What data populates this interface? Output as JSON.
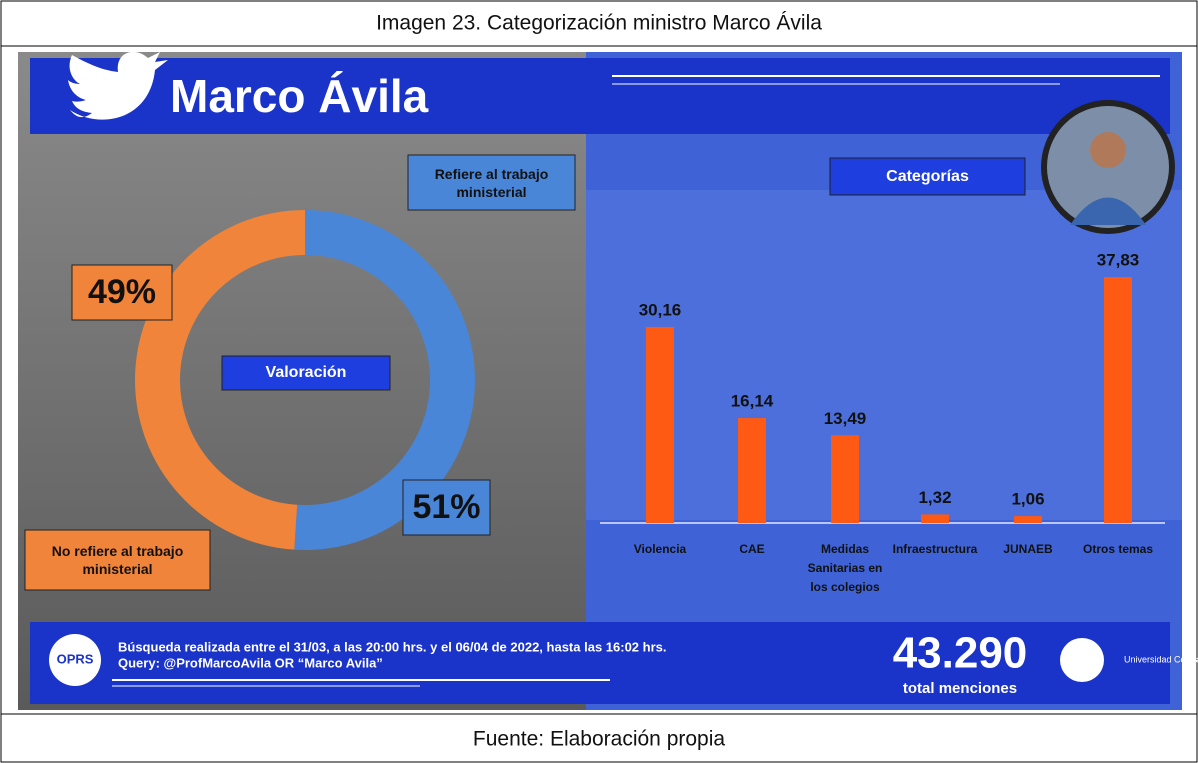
{
  "caption": "Imagen 23. Categorización ministro Marco Ávila",
  "source": "Fuente: Elaboración propia",
  "header": {
    "name": "Marco Ávila"
  },
  "chart_data": [
    {
      "type": "donut",
      "center_label": "Valoración",
      "labels": [
        "Refiere al trabajo ministerial",
        "No refiere al trabajo ministerial"
      ],
      "values": [
        51,
        49
      ],
      "value_labels": [
        "51%",
        "49%"
      ],
      "colors": [
        "#4a86d8",
        "#f0843a"
      ]
    },
    {
      "type": "bar",
      "title": "Categorías",
      "categories": [
        "Violencia",
        "CAE",
        "Medidas Sanitarias en los colegios",
        "Infraestructura",
        "JUNAEB",
        "Otros temas"
      ],
      "values": [
        30.16,
        16.14,
        13.49,
        1.32,
        1.06,
        37.83
      ],
      "value_labels": [
        "30,16",
        "16,14",
        "13,49",
        "1,32",
        "1,06",
        "37,83"
      ],
      "color": "#ff5a14"
    }
  ],
  "footer": {
    "search": "Búsqueda realizada entre el 31/03, a las 20:00 hrs. y el 06/04 de 2022, hasta las 16:02 hrs.",
    "query": "Query: @ProfMarcoAvila OR “Marco Avila”",
    "total": "43.290",
    "total_label": "total menciones",
    "logo_left": "OPRS",
    "logo_right": "Universidad Central"
  }
}
